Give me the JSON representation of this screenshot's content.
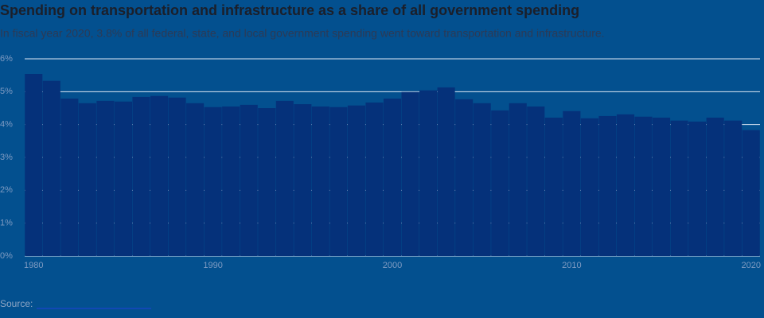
{
  "chart_data": {
    "type": "bar",
    "title": "Spending on transportation and infrastructure as a share of all government spending",
    "subtitle": "In fiscal year 2020, 3.8% of all federal, state, and local government spending went toward transportation and infrastructure.",
    "source": "Source:",
    "x": [
      1980,
      1981,
      1982,
      1983,
      1984,
      1985,
      1986,
      1987,
      1988,
      1989,
      1990,
      1991,
      1992,
      1993,
      1994,
      1995,
      1996,
      1997,
      1998,
      1999,
      2000,
      2001,
      2002,
      2003,
      2004,
      2005,
      2006,
      2007,
      2008,
      2009,
      2010,
      2011,
      2012,
      2013,
      2014,
      2015,
      2016,
      2017,
      2018,
      2019,
      2020
    ],
    "values": [
      5.54,
      5.33,
      4.79,
      4.65,
      4.72,
      4.7,
      4.84,
      4.87,
      4.82,
      4.65,
      4.53,
      4.55,
      4.6,
      4.5,
      4.72,
      4.62,
      4.55,
      4.53,
      4.58,
      4.67,
      4.79,
      4.99,
      5.04,
      5.13,
      4.77,
      4.65,
      4.43,
      4.65,
      4.55,
      4.21,
      4.41,
      4.19,
      4.26,
      4.31,
      4.24,
      4.21,
      4.12,
      4.09,
      4.21,
      4.12,
      3.83
    ],
    "color": "#05317a",
    "xlim": [
      1979.5,
      2020.5
    ],
    "xticks": [
      1980,
      1990,
      2000,
      2010,
      2020
    ],
    "ylim": [
      0,
      6
    ],
    "yticks": [
      {
        "value": 0,
        "label": "0%"
      },
      {
        "value": 1,
        "label": "1%"
      },
      {
        "value": 2,
        "label": "2%"
      },
      {
        "value": 3,
        "label": "3%"
      },
      {
        "value": 4,
        "label": "4%"
      },
      {
        "value": 5,
        "label": "5%"
      },
      {
        "value": 6,
        "label": "6%"
      }
    ],
    "grid": true
  }
}
